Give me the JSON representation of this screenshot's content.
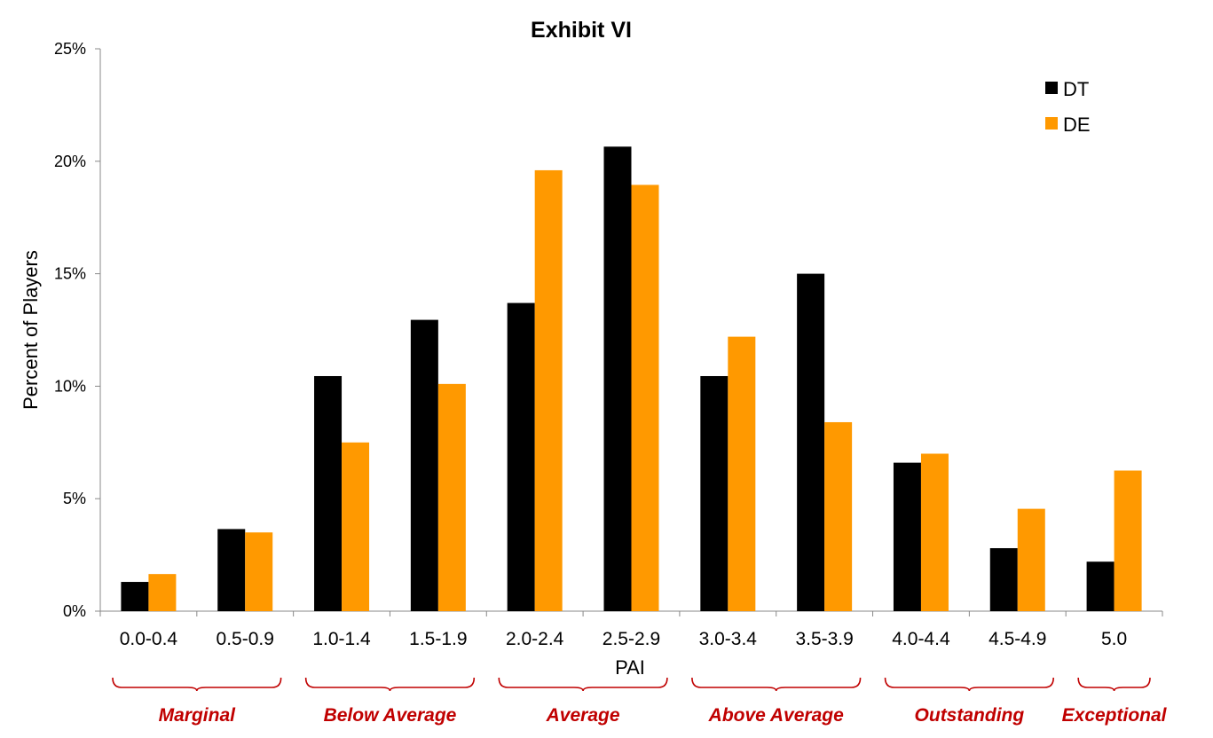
{
  "chart_data": {
    "type": "bar",
    "title": "Exhibit VI",
    "xlabel": "PAI",
    "ylabel": "Percent of Players",
    "ylim": [
      0,
      25
    ],
    "yticks": [
      "0%",
      "5%",
      "10%",
      "15%",
      "20%",
      "25%"
    ],
    "categories": [
      "0.0-0.4",
      "0.5-0.9",
      "1.0-1.4",
      "1.5-1.9",
      "2.0-2.4",
      "2.5-2.9",
      "3.0-3.4",
      "3.5-3.9",
      "4.0-4.4",
      "4.5-4.9",
      "5.0"
    ],
    "series": [
      {
        "name": "DT",
        "color": "#000000",
        "values": [
          1.3,
          3.65,
          10.45,
          12.95,
          13.7,
          20.65,
          10.45,
          15.0,
          6.6,
          2.8,
          2.2
        ]
      },
      {
        "name": "DE",
        "color": "#FF9900",
        "values": [
          1.65,
          3.5,
          7.5,
          10.1,
          19.6,
          18.95,
          12.2,
          8.4,
          7.0,
          4.55,
          6.25
        ]
      }
    ],
    "legend_position": "top-right",
    "grid": false,
    "groups": [
      {
        "label": "Marginal",
        "from": 0,
        "to": 1
      },
      {
        "label": "Below Average",
        "from": 2,
        "to": 3
      },
      {
        "label": "Average",
        "from": 4,
        "to": 5
      },
      {
        "label": "Above Average",
        "from": 6,
        "to": 7
      },
      {
        "label": "Outstanding",
        "from": 8,
        "to": 9
      },
      {
        "label": "Exceptional",
        "from": 10,
        "to": 10
      }
    ],
    "group_color": "#C00000"
  }
}
